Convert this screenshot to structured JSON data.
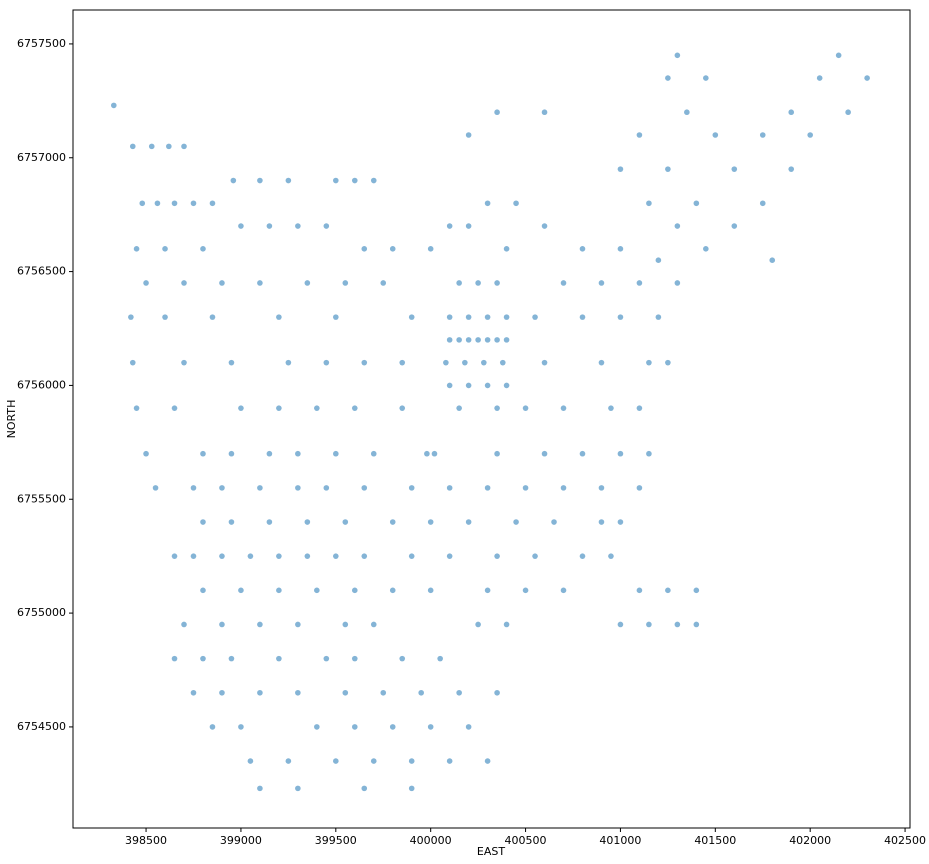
{
  "chart_data": {
    "type": "scatter",
    "xlabel": "EAST",
    "ylabel": "NORTH",
    "color": "#1f77b4",
    "alpha": 0.55,
    "xlim": [
      398115,
      402526
    ],
    "ylim": [
      6754056,
      6757649
    ],
    "xticks": [
      398500,
      399000,
      399500,
      400000,
      400500,
      401000,
      401500,
      402000,
      402500
    ],
    "yticks": [
      6754500,
      6755000,
      6755500,
      6756000,
      6756500,
      6757000,
      6757500
    ],
    "x": [
      398330,
      398430,
      398530,
      398620,
      398700,
      398960,
      399100,
      399250,
      399500,
      399600,
      399700,
      398480,
      398560,
      398650,
      398750,
      398850,
      400300,
      400450,
      399000,
      399150,
      399300,
      399450,
      400100,
      400200,
      400600,
      398450,
      398600,
      398800,
      399650,
      399800,
      400000,
      400400,
      400800,
      401000,
      398500,
      398700,
      398900,
      399100,
      399350,
      399550,
      399750,
      400150,
      400250,
      400350,
      400700,
      400900,
      401100,
      401300,
      398420,
      398600,
      398850,
      399200,
      399500,
      399900,
      400100,
      400200,
      400300,
      400400,
      400550,
      400800,
      401000,
      401200,
      400100,
      400150,
      400200,
      400250,
      400300,
      400350,
      400400,
      398430,
      398700,
      398950,
      399250,
      399450,
      399650,
      399850,
      400080,
      400180,
      400280,
      400380,
      400600,
      400900,
      401150,
      401250,
      400100,
      400200,
      400300,
      400400,
      398450,
      398650,
      399000,
      399200,
      399400,
      399600,
      399850,
      400150,
      400350,
      400500,
      400700,
      400950,
      401100,
      398500,
      398800,
      398950,
      399150,
      399300,
      399500,
      399700,
      399980,
      400020,
      400350,
      400600,
      400800,
      401000,
      401150,
      398550,
      398750,
      398900,
      399100,
      399300,
      399450,
      399650,
      399900,
      400100,
      400300,
      400500,
      400700,
      400900,
      401100,
      398800,
      398950,
      399150,
      399350,
      399550,
      399800,
      400000,
      400200,
      400450,
      400650,
      400900,
      401000,
      398650,
      398750,
      398900,
      399050,
      399200,
      399350,
      399500,
      399650,
      399900,
      400100,
      400350,
      400550,
      400800,
      400950,
      398800,
      399000,
      399200,
      399400,
      399600,
      399800,
      400000,
      400300,
      400500,
      400700,
      401100,
      401250,
      401400,
      398700,
      398900,
      399100,
      399300,
      399550,
      399700,
      400250,
      400400,
      401000,
      401150,
      401300,
      401400,
      398650,
      398800,
      398950,
      399200,
      399450,
      399600,
      399850,
      400050,
      398750,
      398900,
      399100,
      399300,
      399550,
      399750,
      399950,
      400150,
      400350,
      398850,
      399000,
      399400,
      399600,
      399800,
      400000,
      400200,
      399050,
      399250,
      399500,
      399700,
      399900,
      400100,
      400300,
      399100,
      399300,
      399650,
      399900,
      401300,
      402150,
      401250,
      401450,
      402050,
      402300,
      400350,
      400600,
      401350,
      401900,
      402200,
      400200,
      401100,
      401500,
      401750,
      402000,
      401000,
      401250,
      401600,
      401900,
      401150,
      401400,
      401750,
      401300,
      401600,
      401450,
      401200,
      401800
    ],
    "y": [
      6757230,
      6757050,
      6757050,
      6757050,
      6757050,
      6756900,
      6756900,
      6756900,
      6756900,
      6756900,
      6756900,
      6756800,
      6756800,
      6756800,
      6756800,
      6756800,
      6756800,
      6756800,
      6756700,
      6756700,
      6756700,
      6756700,
      6756700,
      6756700,
      6756700,
      6756600,
      6756600,
      6756600,
      6756600,
      6756600,
      6756600,
      6756600,
      6756600,
      6756600,
      6756450,
      6756450,
      6756450,
      6756450,
      6756450,
      6756450,
      6756450,
      6756450,
      6756450,
      6756450,
      6756450,
      6756450,
      6756450,
      6756450,
      6756300,
      6756300,
      6756300,
      6756300,
      6756300,
      6756300,
      6756300,
      6756300,
      6756300,
      6756300,
      6756300,
      6756300,
      6756300,
      6756300,
      6756200,
      6756200,
      6756200,
      6756200,
      6756200,
      6756200,
      6756200,
      6756100,
      6756100,
      6756100,
      6756100,
      6756100,
      6756100,
      6756100,
      6756100,
      6756100,
      6756100,
      6756100,
      6756100,
      6756100,
      6756100,
      6756100,
      6756000,
      6756000,
      6756000,
      6756000,
      6755900,
      6755900,
      6755900,
      6755900,
      6755900,
      6755900,
      6755900,
      6755900,
      6755900,
      6755900,
      6755900,
      6755900,
      6755900,
      6755700,
      6755700,
      6755700,
      6755700,
      6755700,
      6755700,
      6755700,
      6755700,
      6755700,
      6755700,
      6755700,
      6755700,
      6755700,
      6755700,
      6755550,
      6755550,
      6755550,
      6755550,
      6755550,
      6755550,
      6755550,
      6755550,
      6755550,
      6755550,
      6755550,
      6755550,
      6755550,
      6755550,
      6755400,
      6755400,
      6755400,
      6755400,
      6755400,
      6755400,
      6755400,
      6755400,
      6755400,
      6755400,
      6755400,
      6755400,
      6755250,
      6755250,
      6755250,
      6755250,
      6755250,
      6755250,
      6755250,
      6755250,
      6755250,
      6755250,
      6755250,
      6755250,
      6755250,
      6755250,
      6755100,
      6755100,
      6755100,
      6755100,
      6755100,
      6755100,
      6755100,
      6755100,
      6755100,
      6755100,
      6755100,
      6755100,
      6755100,
      6754950,
      6754950,
      6754950,
      6754950,
      6754950,
      6754950,
      6754950,
      6754950,
      6754950,
      6754950,
      6754950,
      6754950,
      6754800,
      6754800,
      6754800,
      6754800,
      6754800,
      6754800,
      6754800,
      6754800,
      6754650,
      6754650,
      6754650,
      6754650,
      6754650,
      6754650,
      6754650,
      6754650,
      6754650,
      6754500,
      6754500,
      6754500,
      6754500,
      6754500,
      6754500,
      6754500,
      6754350,
      6754350,
      6754350,
      6754350,
      6754350,
      6754350,
      6754350,
      6754230,
      6754230,
      6754230,
      6754230,
      6757450,
      6757450,
      6757350,
      6757350,
      6757350,
      6757350,
      6757200,
      6757200,
      6757200,
      6757200,
      6757200,
      6757100,
      6757100,
      6757100,
      6757100,
      6757100,
      6756950,
      6756950,
      6756950,
      6756950,
      6756800,
      6756800,
      6756800,
      6756700,
      6756700,
      6756600,
      6756550,
      6756550
    ]
  }
}
